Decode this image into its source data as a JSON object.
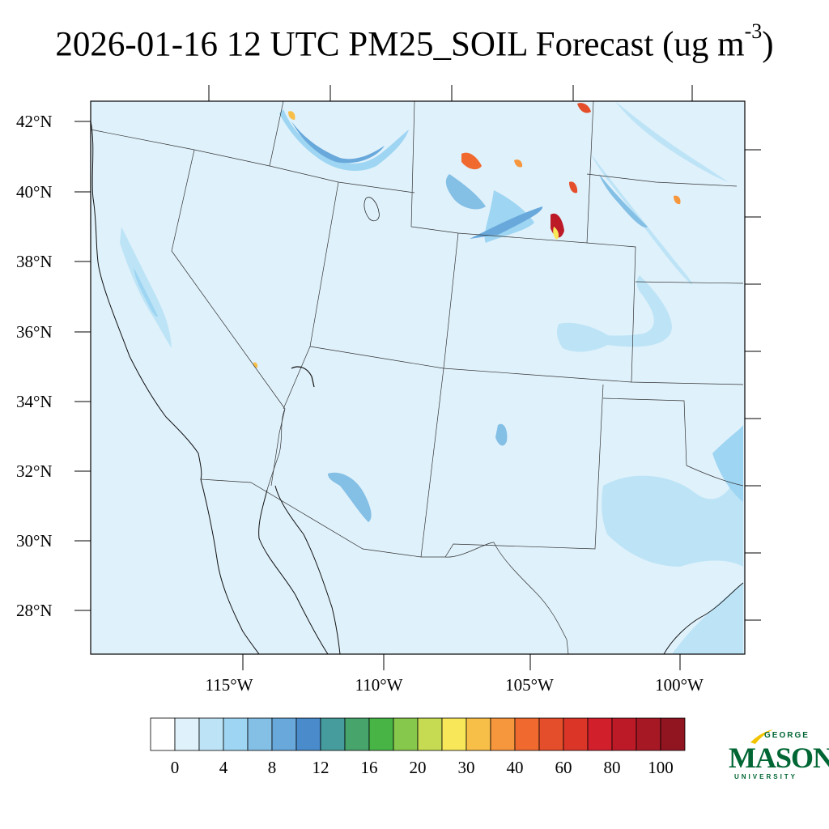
{
  "title": {
    "main": "2026-01-16 12 UTC PM25_SOIL Forecast (ug m",
    "exponent": "-3",
    "close": ")"
  },
  "map": {
    "lat_labels": [
      "42°N",
      "40°N",
      "38°N",
      "36°N",
      "34°N",
      "32°N",
      "30°N",
      "28°N"
    ],
    "lon_labels": [
      "115°W",
      "110°W",
      "105°W",
      "100°W"
    ],
    "background_color": "#dff1fb"
  },
  "colorbar": {
    "colors": [
      "#ffffff",
      "#dff1fb",
      "#bde4f6",
      "#9dd5f2",
      "#84bfe5",
      "#68a8db",
      "#4a8bcb",
      "#469c9c",
      "#47a56c",
      "#48b446",
      "#86c84b",
      "#c6db52",
      "#f7e759",
      "#f8bf48",
      "#f6963d",
      "#f06a30",
      "#e44e2a",
      "#da3527",
      "#d21f2c",
      "#bd1a28",
      "#a71825",
      "#901520"
    ],
    "labels": [
      "0",
      "4",
      "8",
      "12",
      "16",
      "20",
      "30",
      "40",
      "60",
      "80",
      "100"
    ]
  },
  "logo": {
    "george": "GEORGE",
    "mason": "MASON",
    "university": "UNIVERSITY",
    "color": "#006633",
    "accent": "#f2c300"
  }
}
